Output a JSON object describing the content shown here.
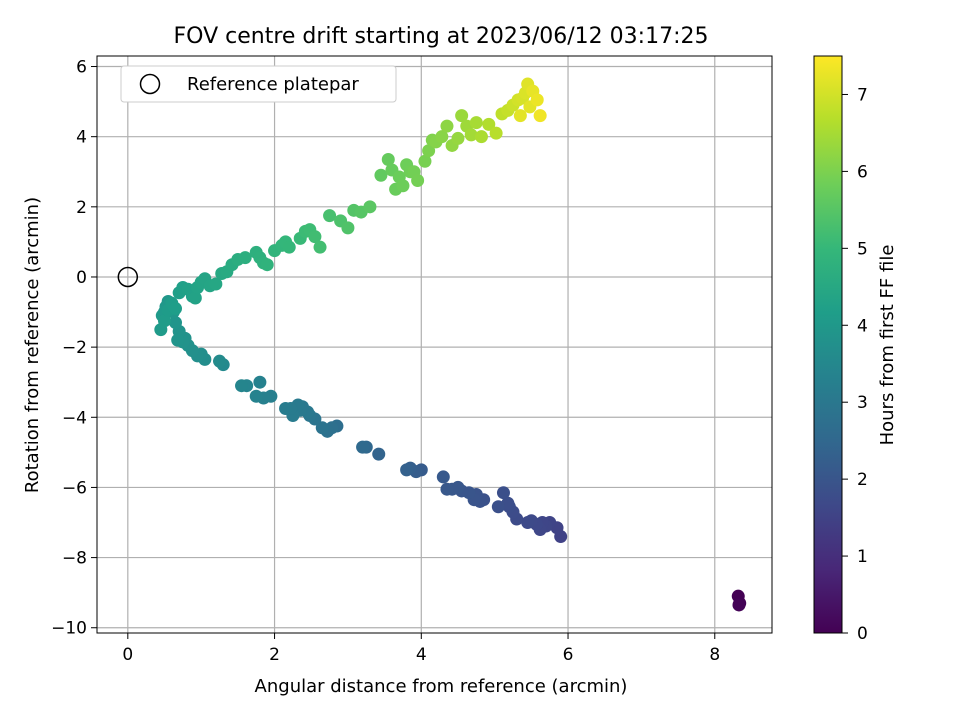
{
  "chart_data": {
    "type": "scatter",
    "title": "FOV centre drift starting at 2023/06/12 03:17:25",
    "xlabel": "Angular distance from reference (arcmin)",
    "ylabel": "Rotation from reference (arcmin)",
    "xlim": [
      -0.42,
      8.78
    ],
    "ylim": [
      -10.15,
      6.3
    ],
    "xticks": [
      0,
      2,
      4,
      6,
      8
    ],
    "xtick_labels": [
      "0",
      "2",
      "4",
      "6",
      "8"
    ],
    "yticks": [
      -10,
      -8,
      -6,
      -4,
      -2,
      0,
      2,
      4,
      6
    ],
    "ytick_labels": [
      "−10",
      "−8",
      "−6",
      "−4",
      "−2",
      "0",
      "2",
      "4",
      "6"
    ],
    "grid": true,
    "legend": {
      "placement": "top-left",
      "entries": [
        "Reference platepar"
      ]
    },
    "reference_point": {
      "x": 0,
      "y": 0
    },
    "colorbar": {
      "label": "Hours from first FF file",
      "range": [
        0,
        7.5
      ],
      "ticks": [
        0,
        1,
        2,
        3,
        4,
        5,
        6,
        7
      ],
      "tick_labels": [
        "0",
        "1",
        "2",
        "3",
        "4",
        "5",
        "6",
        "7"
      ],
      "colormap_stops": [
        "#440154",
        "#482878",
        "#3e4989",
        "#31688e",
        "#26828e",
        "#1f9e89",
        "#35b779",
        "#6ece58",
        "#b5de2b",
        "#fde725"
      ]
    },
    "x": [
      8.32,
      8.34,
      8.33,
      5.9,
      5.85,
      5.75,
      5.7,
      5.65,
      5.62,
      5.57,
      5.5,
      5.45,
      5.3,
      5.25,
      5.2,
      5.18,
      5.12,
      5.05,
      4.85,
      4.8,
      4.75,
      4.72,
      4.65,
      4.55,
      4.5,
      4.42,
      4.35,
      4.3,
      4.0,
      3.93,
      3.85,
      3.8,
      3.42,
      3.25,
      3.2,
      2.85,
      2.78,
      2.72,
      2.65,
      2.55,
      2.48,
      2.45,
      2.38,
      2.35,
      2.32,
      2.25,
      2.22,
      2.15,
      1.95,
      1.85,
      1.8,
      1.75,
      1.62,
      1.55,
      1.3,
      1.25,
      1.05,
      1.0,
      0.95,
      0.88,
      0.82,
      0.78,
      0.75,
      0.7,
      0.68,
      0.65,
      0.62,
      0.58,
      0.55,
      0.52,
      0.5,
      0.47,
      0.45,
      0.5,
      0.55,
      0.6,
      0.65,
      0.7,
      0.75,
      0.82,
      0.88,
      0.92,
      0.95,
      1.0,
      1.05,
      1.12,
      1.2,
      1.28,
      1.35,
      1.42,
      1.5,
      1.6,
      1.75,
      1.8,
      1.85,
      1.9,
      2.0,
      2.1,
      2.15,
      2.2,
      2.35,
      2.42,
      2.48,
      2.55,
      2.62,
      2.75,
      2.9,
      3.0,
      3.08,
      3.18,
      3.3,
      3.45,
      3.55,
      3.6,
      3.65,
      3.7,
      3.75,
      3.8,
      3.85,
      3.9,
      3.95,
      4.05,
      4.1,
      4.15,
      4.2,
      4.28,
      4.35,
      4.42,
      4.5,
      4.55,
      4.62,
      4.68,
      4.75,
      4.82,
      4.92,
      5.02,
      5.1,
      5.18,
      5.25,
      5.32,
      5.38,
      5.42,
      5.45,
      5.48,
      5.52,
      5.58,
      5.62,
      5.35
    ],
    "y": [
      -9.1,
      -9.3,
      -9.35,
      -7.4,
      -7.15,
      -7.0,
      -7.1,
      -7.0,
      -7.2,
      -7.05,
      -6.95,
      -7.0,
      -6.9,
      -6.7,
      -6.55,
      -6.45,
      -6.15,
      -6.55,
      -6.35,
      -6.4,
      -6.2,
      -6.35,
      -6.15,
      -6.1,
      -6.0,
      -6.05,
      -6.05,
      -5.7,
      -5.5,
      -5.55,
      -5.45,
      -5.5,
      -5.05,
      -4.85,
      -4.85,
      -4.25,
      -4.3,
      -4.4,
      -4.3,
      -4.05,
      -3.95,
      -3.85,
      -3.7,
      -3.8,
      -3.65,
      -3.95,
      -3.75,
      -3.75,
      -3.4,
      -3.45,
      -3.0,
      -3.4,
      -3.1,
      -3.1,
      -2.5,
      -2.4,
      -2.35,
      -2.2,
      -2.25,
      -2.1,
      -1.95,
      -1.75,
      -1.85,
      -1.55,
      -1.8,
      -1.3,
      -1.0,
      -0.9,
      -0.7,
      -0.85,
      -1.0,
      -1.1,
      -1.5,
      -1.25,
      -0.95,
      -0.75,
      -0.9,
      -0.45,
      -0.3,
      -0.35,
      -0.55,
      -0.6,
      -0.3,
      -0.15,
      -0.05,
      -0.25,
      -0.2,
      0.1,
      0.15,
      0.35,
      0.5,
      0.55,
      0.7,
      0.55,
      0.4,
      0.35,
      0.75,
      0.9,
      1.0,
      0.85,
      1.1,
      1.3,
      1.35,
      1.15,
      0.85,
      1.75,
      1.6,
      1.4,
      1.9,
      1.85,
      2.0,
      2.9,
      3.35,
      3.05,
      2.5,
      2.85,
      2.6,
      3.2,
      3.0,
      3.0,
      2.75,
      3.3,
      3.6,
      3.9,
      3.85,
      4.0,
      4.3,
      3.75,
      3.95,
      4.6,
      4.3,
      4.05,
      4.4,
      4.0,
      4.35,
      4.1,
      4.65,
      4.75,
      4.9,
      5.05,
      5.1,
      5.25,
      5.5,
      4.85,
      5.3,
      5.05,
      4.6,
      4.6
    ],
    "hours": [
      0.0,
      0.03,
      0.06,
      1.5,
      1.52,
      1.55,
      1.58,
      1.6,
      1.62,
      1.65,
      1.67,
      1.7,
      1.72,
      1.75,
      1.78,
      1.8,
      1.83,
      1.85,
      1.88,
      1.9,
      1.93,
      1.95,
      1.98,
      2.0,
      2.03,
      2.05,
      2.08,
      2.1,
      2.15,
      2.2,
      2.25,
      2.3,
      2.4,
      2.5,
      2.55,
      2.7,
      2.75,
      2.8,
      2.85,
      2.9,
      2.95,
      3.0,
      3.02,
      3.05,
      3.08,
      3.1,
      3.12,
      3.15,
      3.25,
      3.28,
      3.3,
      3.33,
      3.38,
      3.42,
      3.55,
      3.6,
      3.65,
      3.7,
      3.72,
      3.75,
      3.78,
      3.8,
      3.83,
      3.85,
      3.88,
      3.9,
      3.92,
      3.95,
      3.97,
      4.0,
      4.02,
      4.05,
      4.07,
      4.1,
      4.12,
      4.15,
      4.17,
      4.2,
      4.22,
      4.25,
      4.27,
      4.3,
      4.32,
      4.35,
      4.38,
      4.4,
      4.45,
      4.5,
      4.55,
      4.6,
      4.65,
      4.7,
      4.75,
      4.78,
      4.8,
      4.83,
      4.88,
      4.92,
      4.95,
      4.98,
      5.05,
      5.1,
      5.13,
      5.17,
      5.2,
      5.28,
      5.35,
      5.4,
      5.45,
      5.5,
      5.55,
      5.65,
      5.7,
      5.72,
      5.75,
      5.78,
      5.8,
      5.82,
      5.85,
      5.88,
      5.9,
      5.95,
      6.0,
      6.05,
      6.1,
      6.15,
      6.2,
      6.25,
      6.3,
      6.35,
      6.4,
      6.45,
      6.5,
      6.55,
      6.62,
      6.7,
      6.78,
      6.85,
      6.92,
      7.0,
      7.05,
      7.1,
      7.15,
      7.2,
      7.25,
      7.3,
      7.35,
      7.2
    ]
  }
}
